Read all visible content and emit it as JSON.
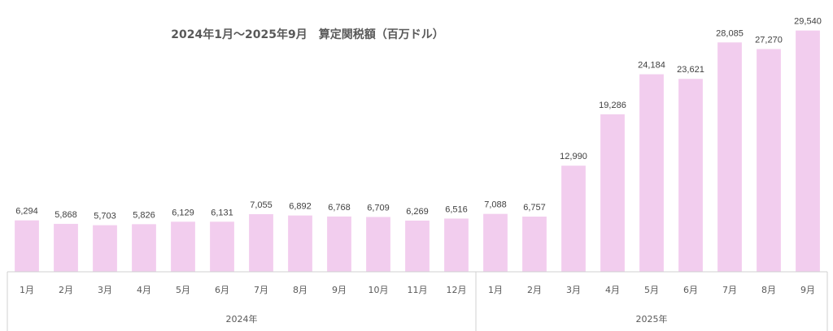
{
  "chart_data": {
    "type": "bar",
    "title": "2024年1月～2025年9月　算定関税額（百万ドル）",
    "groups": [
      {
        "label": "2024年",
        "categories": [
          "1月",
          "2月",
          "3月",
          "4月",
          "5月",
          "6月",
          "7月",
          "8月",
          "9月",
          "10月",
          "11月",
          "12月"
        ]
      },
      {
        "label": "2025年",
        "categories": [
          "1月",
          "2月",
          "3月",
          "4月",
          "5月",
          "6月",
          "7月",
          "8月",
          "9月"
        ]
      }
    ],
    "values": [
      6294,
      5868,
      5703,
      5826,
      6129,
      6131,
      7055,
      6892,
      6768,
      6709,
      6269,
      6516,
      7088,
      6757,
      12990,
      19286,
      24184,
      23621,
      28085,
      27270,
      29540
    ],
    "data_labels": [
      "6,294",
      "5,868",
      "5,703",
      "5,826",
      "6,129",
      "6,131",
      "7,055",
      "6,892",
      "6,768",
      "6,709",
      "6,269",
      "6,516",
      "7,088",
      "6,757",
      "12,990",
      "19,286",
      "24,184",
      "23,621",
      "28,085",
      "27,270",
      "29,540"
    ],
    "ylim": [
      0,
      30000
    ],
    "bar_color": "#f2cdee",
    "grid": false,
    "legend": "none"
  }
}
